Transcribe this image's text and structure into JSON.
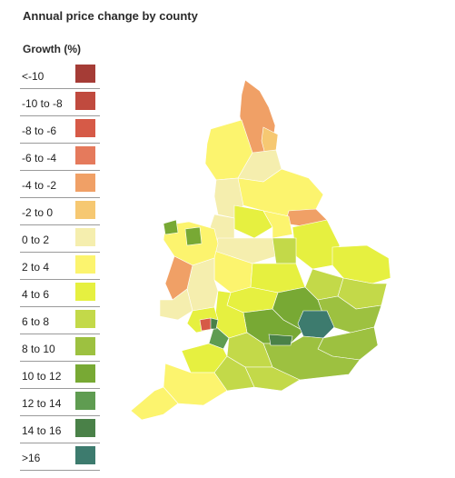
{
  "title": "Annual price change by county",
  "legend": {
    "title": "Growth (%)",
    "items": [
      {
        "label": "<-10",
        "color": "#a53c36"
      },
      {
        "label": "-10 to -8",
        "color": "#c04a3e"
      },
      {
        "label": "-8 to -6",
        "color": "#d65a47"
      },
      {
        "label": "-6 to -4",
        "color": "#e57a5c"
      },
      {
        "label": "-4 to -2",
        "color": "#f0a066"
      },
      {
        "label": "-2 to 0",
        "color": "#f6c872"
      },
      {
        "label": "0 to 2",
        "color": "#f5eeae"
      },
      {
        "label": "2 to 4",
        "color": "#fcf46e"
      },
      {
        "label": "4 to 6",
        "color": "#e6f040"
      },
      {
        "label": "6 to 8",
        "color": "#c3d949"
      },
      {
        "label": "8 to 10",
        "color": "#9dc140"
      },
      {
        "label": "10 to 12",
        "color": "#78a934"
      },
      {
        "label": "12 to 14",
        "color": "#5f9c51"
      },
      {
        "label": "14 to 16",
        "color": "#4a8148"
      },
      {
        "label": ">16",
        "color": "#3d7b6e"
      }
    ]
  }
}
